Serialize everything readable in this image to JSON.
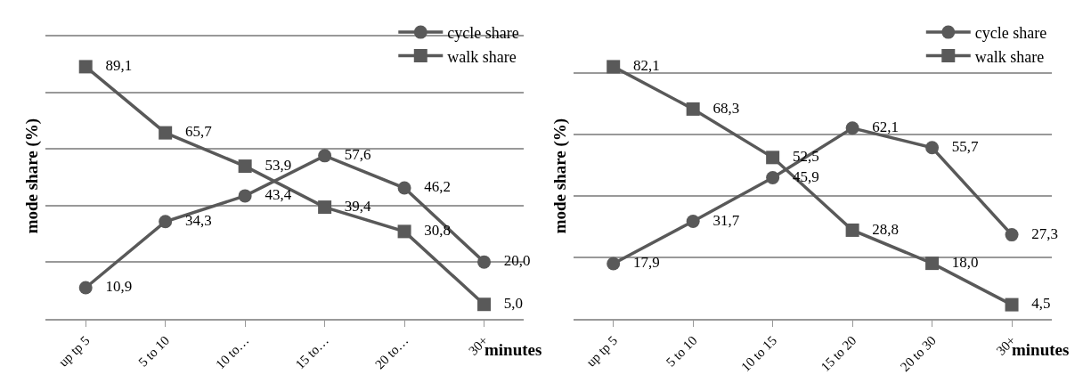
{
  "chart_data": [
    {
      "type": "line",
      "ylabel": "mode share (%)",
      "xlabel": "minutes",
      "categories": [
        "up tp 5",
        "5 to 10",
        "10 to…",
        "15 to…",
        "20 to…",
        "30+"
      ],
      "series": [
        {
          "name": "cycle share",
          "color": "#595959",
          "marker": "circle",
          "values": [
            10.9,
            34.3,
            43.4,
            57.6,
            46.2,
            20.0
          ],
          "value_labels": [
            "10,9",
            "34,3",
            "43,4",
            "57,6",
            "46,2",
            "20,0"
          ]
        },
        {
          "name": "walk share",
          "color": "#595959",
          "marker": "square",
          "values": [
            89.1,
            65.7,
            53.9,
            39.4,
            30.8,
            5.0
          ],
          "value_labels": [
            "89,1",
            "65,7",
            "53,9",
            "39,4",
            "30,8",
            "5,0"
          ]
        }
      ],
      "tick_labels": "x",
      "grid": "y",
      "legend": "top right",
      "line_style": "solid"
    },
    {
      "type": "line",
      "ylabel": "mode share (%)",
      "xlabel": "minutes",
      "categories": [
        "up tp 5",
        "5 to 10",
        "10 to 15",
        "15 to 20",
        "20 to 30",
        "30+"
      ],
      "series": [
        {
          "name": "cycle share",
          "color": "#595959",
          "marker": "circle",
          "values": [
            17.9,
            31.7,
            45.9,
            62.1,
            55.7,
            27.3
          ],
          "value_labels": [
            "17,9",
            "31,7",
            "45,9",
            "62,1",
            "55,7",
            "27,3"
          ]
        },
        {
          "name": "walk share",
          "color": "#595959",
          "marker": "square",
          "values": [
            82.1,
            68.3,
            52.5,
            28.8,
            18.0,
            4.5
          ],
          "value_labels": [
            "82,1",
            "68,3",
            "52,5",
            "28,8",
            "18,0",
            "4,5"
          ]
        }
      ],
      "tick_labels": "x",
      "grid": "y",
      "legend": "top right",
      "line_style": "solid"
    }
  ]
}
